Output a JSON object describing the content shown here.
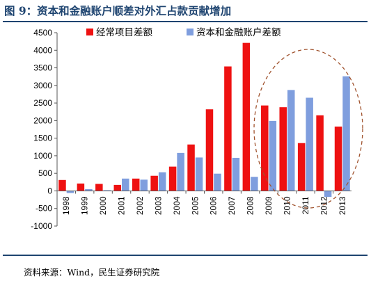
{
  "figure": {
    "title": "图 9：资本和金融账户顺差对外汇占款贡献增加",
    "source": "资料来源：Wind，民生证券研究院"
  },
  "colors": {
    "current_account": "#ee1111",
    "capital_account": "#7f9ede",
    "ellipse": "#a0522d",
    "rule": "#1e4470"
  },
  "chart_data": {
    "type": "bar",
    "categories": [
      "1998",
      "1999",
      "2000",
      "2001",
      "2002",
      "2003",
      "2004",
      "2005",
      "2006",
      "2007",
      "2008",
      "2009",
      "2010",
      "2011",
      "2012",
      "2013"
    ],
    "series": [
      {
        "name": "经常项目差额",
        "values": [
          310,
          210,
          200,
          170,
          350,
          430,
          690,
          1320,
          2320,
          3540,
          4210,
          2430,
          2380,
          1360,
          2150,
          1830
        ]
      },
      {
        "name": "资本和金融账户差额",
        "values": [
          -60,
          50,
          20,
          350,
          320,
          530,
          1080,
          950,
          490,
          940,
          400,
          1990,
          2870,
          2650,
          -170,
          3260
        ]
      }
    ],
    "ylim": [
      -1000,
      4500
    ],
    "yticks": [
      -1000,
      -500,
      0,
      500,
      1000,
      1500,
      2000,
      2500,
      3000,
      3500,
      4000,
      4500
    ],
    "legend": "top",
    "grid": false,
    "annotation": "dashed ellipse highlighting 2009–2013"
  }
}
